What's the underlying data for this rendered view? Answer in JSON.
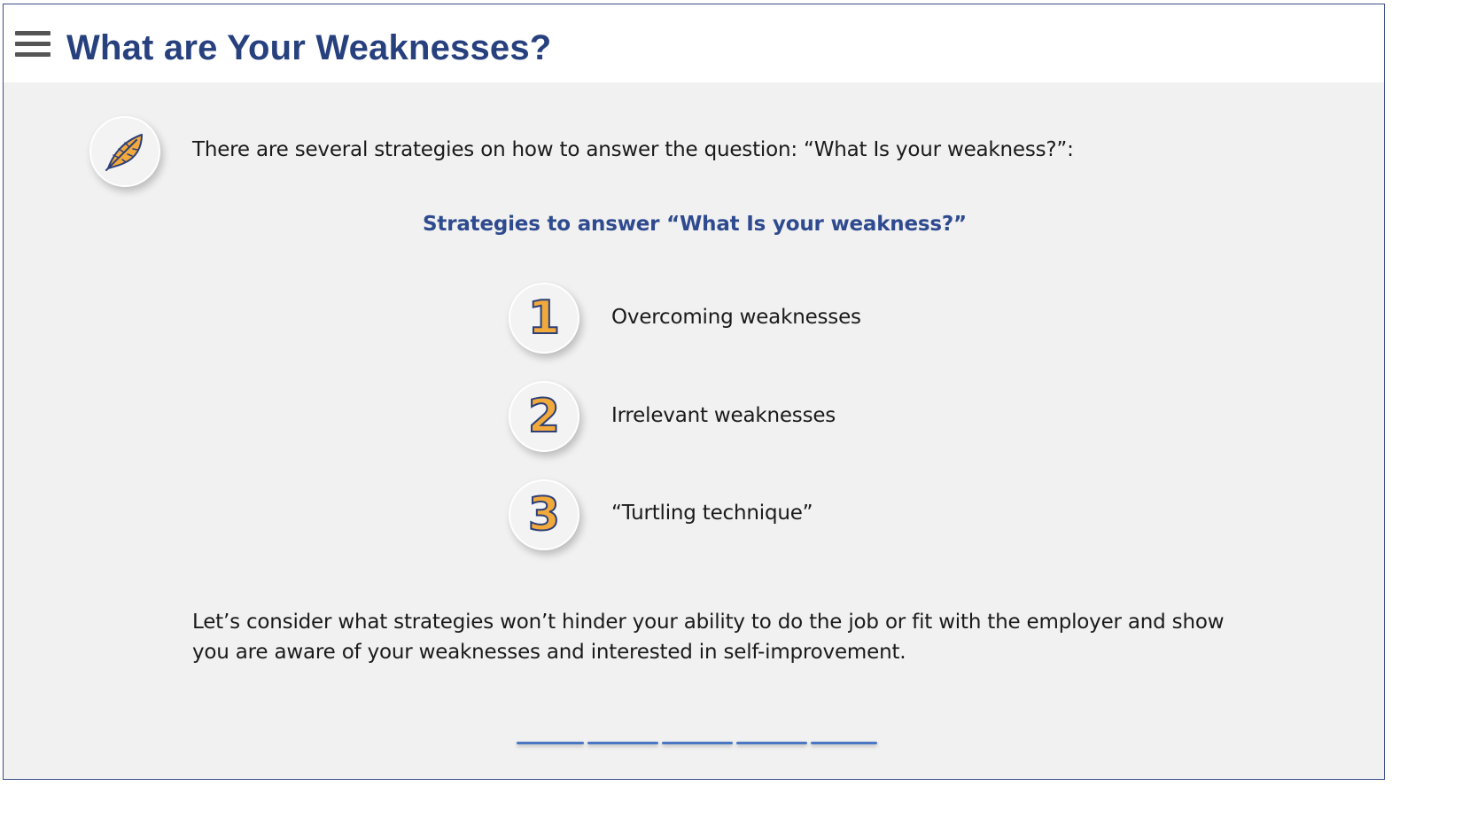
{
  "header": {
    "title": "What are Your Weaknesses?",
    "menu_icon": "hamburger-menu-icon"
  },
  "intro": {
    "icon": "feather-icon",
    "text": "There are several strategies on how to answer the question: “What Is your weakness?”:"
  },
  "strategies": {
    "heading": "Strategies to answer “What Is your weakness?”",
    "items": [
      {
        "number": "1",
        "label": "Overcoming weaknesses"
      },
      {
        "number": "2",
        "label": "Irrelevant weaknesses"
      },
      {
        "number": "3",
        "label": "“Turtling technique”"
      }
    ]
  },
  "conclusion": {
    "line1": "Let’s consider what strategies won’t hinder your ability to do the job or fit with the employer and show",
    "line2": "you are aware of your weaknesses and interested in self-improvement."
  },
  "navigation": {
    "segments": 5
  },
  "colors": {
    "title": "#27407e",
    "subheading": "#2f4b8f",
    "number_fill": "#f2a93b",
    "number_stroke": "#2c3f78",
    "background": "#f1f1f1",
    "nav": "#4a76c4"
  }
}
